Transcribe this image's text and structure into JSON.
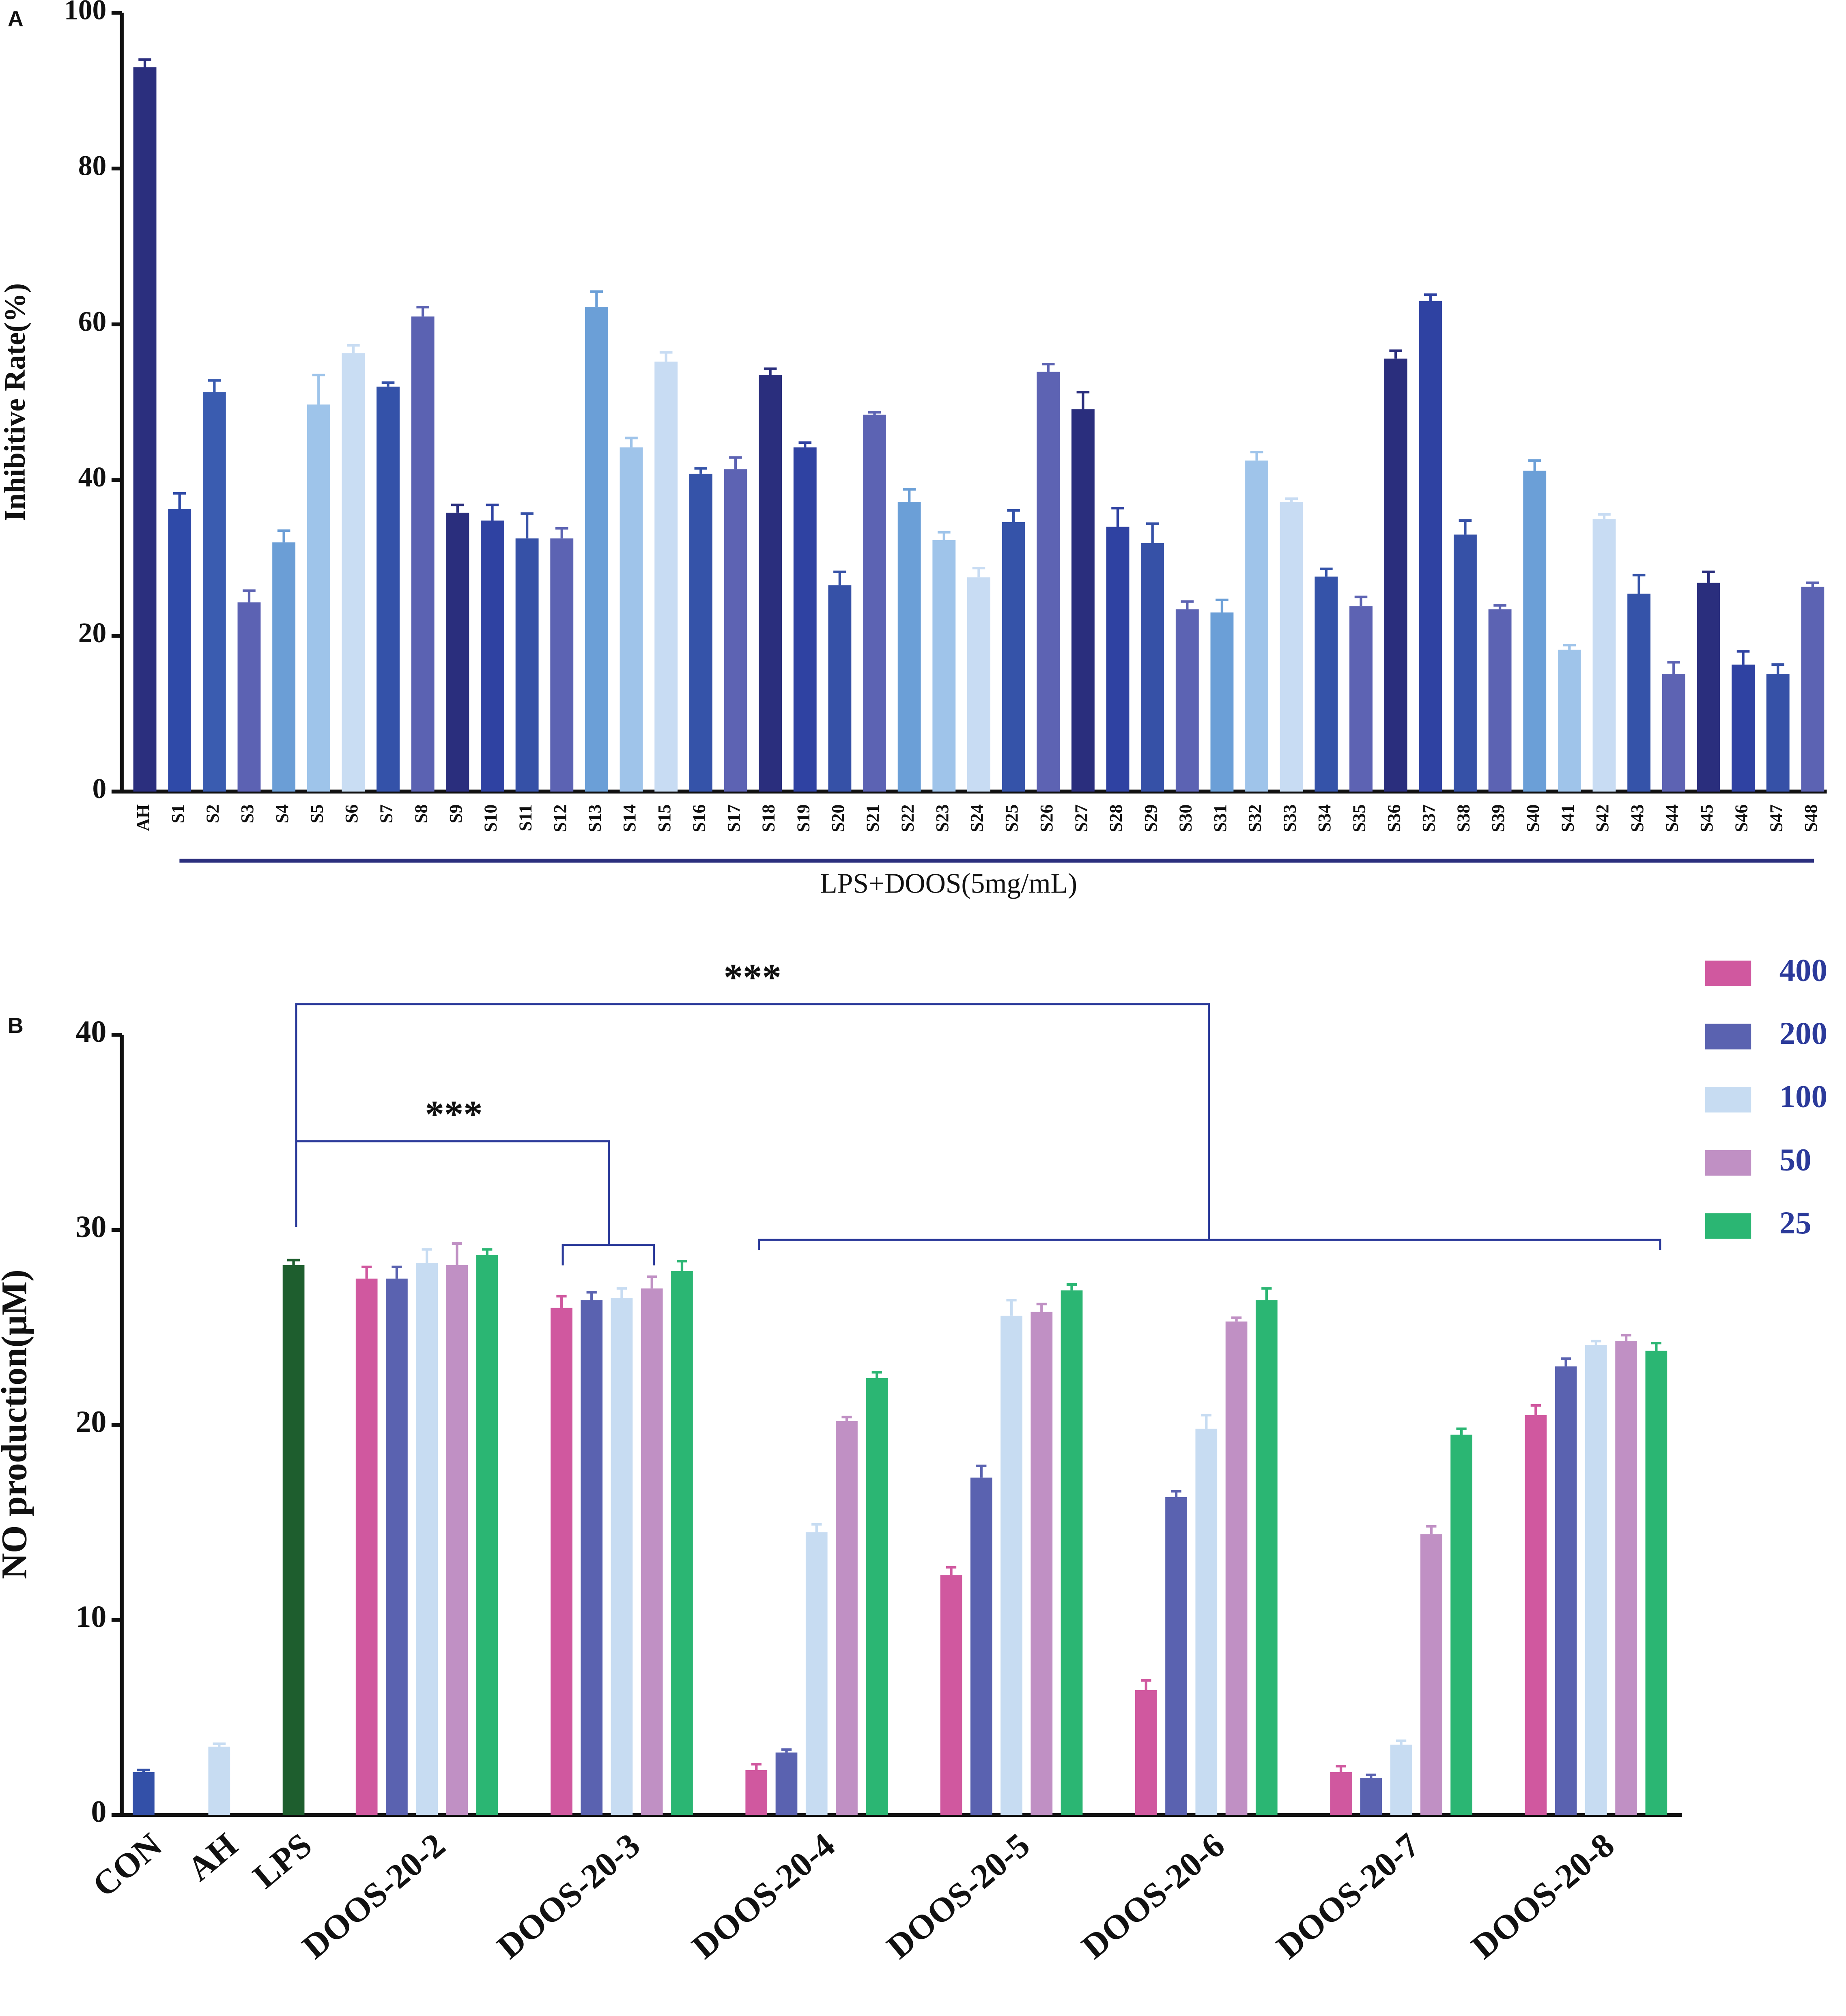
{
  "chart_data": [
    {
      "type": "bar",
      "panel_label": "A",
      "ylabel": "Inhibitive Rate(%)",
      "x_group_label": "LPS+DOOS(5mg/mL)",
      "categories": [
        "AH",
        "S1",
        "S2",
        "S3",
        "S4",
        "S5",
        "S6",
        "S7",
        "S8",
        "S9",
        "S10",
        "S11",
        "S12",
        "S13",
        "S14",
        "S15",
        "S16",
        "S17",
        "S18",
        "S19",
        "S20",
        "S21",
        "S22",
        "S23",
        "S24",
        "S25",
        "S26",
        "S27",
        "S28",
        "S29",
        "S30",
        "S31",
        "S32",
        "S33",
        "S34",
        "S35",
        "S36",
        "S37",
        "S38",
        "S39",
        "S40",
        "S41",
        "S42",
        "S43",
        "S44",
        "S45",
        "S46",
        "S47",
        "S48"
      ],
      "values": [
        93,
        36.3,
        51.3,
        24.3,
        32,
        49.7,
        56.3,
        52,
        61,
        35.8,
        34.8,
        32.5,
        32.5,
        62.2,
        44.2,
        55.2,
        40.8,
        41.4,
        53.5,
        44.2,
        26.5,
        48.4,
        37.2,
        32.3,
        27.5,
        34.6,
        53.9,
        49.1,
        34,
        31.9,
        23.4,
        23,
        42.5,
        37.2,
        27.6,
        23.8,
        55.6,
        63,
        33,
        23.4,
        41.2,
        18.2,
        35,
        25.4,
        15.1,
        26.8,
        16.3,
        15.1,
        26.3
      ],
      "errors": [
        1,
        2,
        1.5,
        1.5,
        1.5,
        3.8,
        1,
        0.5,
        1.2,
        1,
        2,
        3.2,
        1.3,
        2,
        1.2,
        1.2,
        0.7,
        1.5,
        0.8,
        0.6,
        1.7,
        0.3,
        1.6,
        1,
        1.2,
        1.5,
        1,
        2.2,
        2.4,
        2.5,
        1,
        1.6,
        1.1,
        0.4,
        1,
        1.2,
        1,
        0.8,
        1.8,
        0.5,
        1.3,
        0.6,
        0.6,
        2.4,
        1.5,
        1.4,
        1.7,
        1.2,
        0.5
      ],
      "colors": [
        "#2b2f7e",
        "#2f4aa8",
        "#3a5cb0",
        "#5c62b3",
        "#6b9ed6",
        "#9ec4ea",
        "#c9ddf3",
        "#3452a9",
        "#5b62b2",
        "#2a2e7d",
        "#2f42a2",
        "#3651a7",
        "#5c63b3",
        "#6b9fd7",
        "#9fc4ea",
        "#c8dcf3",
        "#3553a9",
        "#5d63b3",
        "#2a2e7d",
        "#2f42a2",
        "#3651a7",
        "#5c63b3",
        "#6b9fd7",
        "#9fc4ea",
        "#c8dcf3",
        "#3553a9",
        "#5d63b3",
        "#2a2e7d",
        "#2f42a2",
        "#3651a7",
        "#5c63b3",
        "#6b9fd7",
        "#9fc4ea",
        "#c8dcf3",
        "#3553a9",
        "#5d63b3",
        "#2a2e7d",
        "#2f42a2",
        "#3651a7",
        "#5c63b3",
        "#6b9fd7",
        "#9fc4ea",
        "#c8dcf3",
        "#3553a9",
        "#5d63b3",
        "#2a2e7d",
        "#2f42a2",
        "#3651a7",
        "#5c63b3"
      ],
      "ylim": [
        0,
        100
      ],
      "yticks": [
        0,
        20,
        40,
        60,
        80,
        100
      ]
    },
    {
      "type": "grouped_bar",
      "panel_label": "B",
      "ylabel": "NO production(μM)",
      "categories": [
        "CON",
        "AH",
        "LPS",
        "DOOS-20-2",
        "DOOS-20-3",
        "DOOS-20-4",
        "DOOS-20-5",
        "DOOS-20-6",
        "DOOS-20-7",
        "DOOS-20-8"
      ],
      "controls": {
        "values": [
          2.2,
          3.5,
          28.2
        ],
        "errors": [
          0.1,
          0.15,
          0.25
        ],
        "colors": [
          "#3350a8",
          "#c7dcf2",
          "#1e5e2e"
        ]
      },
      "series": [
        {
          "name": "400",
          "color": "#d0589f",
          "values": [
            null,
            null,
            null,
            27.5,
            26.0,
            2.3,
            12.3,
            6.4,
            2.2,
            20.5
          ],
          "errors": [
            null,
            null,
            null,
            0.6,
            0.6,
            0.3,
            0.4,
            0.5,
            0.3,
            0.5
          ]
        },
        {
          "name": "200",
          "color": "#5a62b0",
          "values": [
            null,
            null,
            null,
            27.5,
            26.4,
            3.2,
            17.3,
            16.3,
            1.9,
            23.0
          ],
          "errors": [
            null,
            null,
            null,
            0.6,
            0.4,
            0.15,
            0.6,
            0.3,
            0.15,
            0.4
          ]
        },
        {
          "name": "100",
          "color": "#c7dcf2",
          "values": [
            null,
            null,
            null,
            28.3,
            26.5,
            14.5,
            25.6,
            19.8,
            3.6,
            24.1
          ],
          "errors": [
            null,
            null,
            null,
            0.7,
            0.5,
            0.4,
            0.8,
            0.7,
            0.2,
            0.2
          ]
        },
        {
          "name": "50",
          "color": "#c090c4",
          "values": [
            null,
            null,
            null,
            28.2,
            27.0,
            20.2,
            25.8,
            25.3,
            14.4,
            24.3
          ],
          "errors": [
            null,
            null,
            null,
            1.1,
            0.6,
            0.2,
            0.4,
            0.2,
            0.4,
            0.3
          ]
        },
        {
          "name": "25",
          "color": "#2bb673",
          "values": [
            null,
            null,
            null,
            28.7,
            27.9,
            22.4,
            26.9,
            26.4,
            19.5,
            23.8
          ],
          "errors": [
            null,
            null,
            null,
            0.3,
            0.5,
            0.3,
            0.3,
            0.6,
            0.3,
            0.4
          ]
        }
      ],
      "annotations": [
        "***",
        "***"
      ],
      "ylim": [
        0,
        40
      ],
      "yticks": [
        0,
        10,
        20,
        30,
        40
      ]
    }
  ]
}
